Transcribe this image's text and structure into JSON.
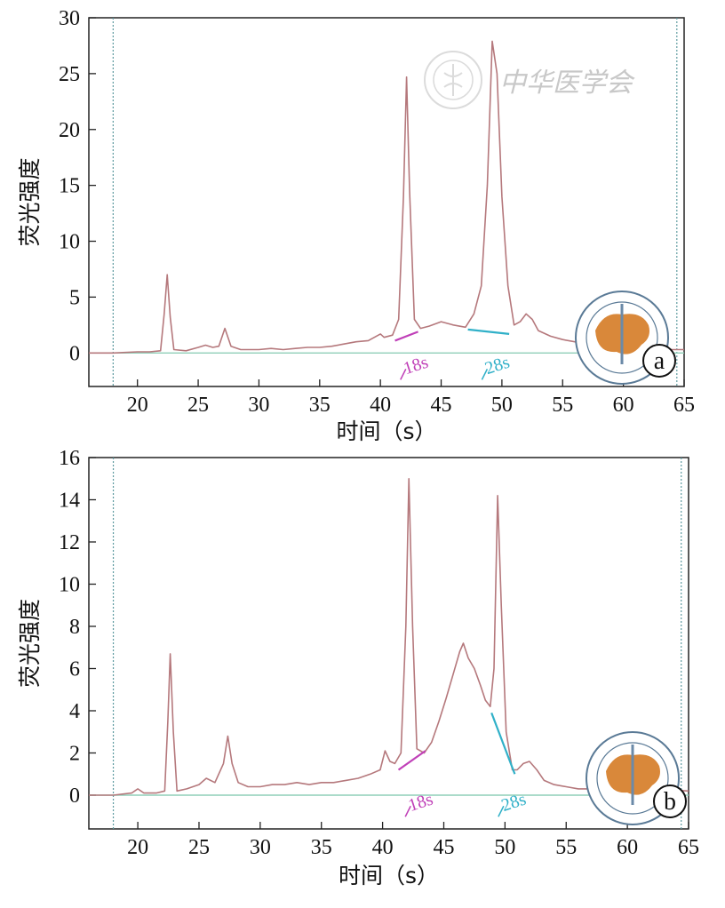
{
  "watermark": {
    "text": "中华医学会"
  },
  "colors": {
    "trace": "#b5787c",
    "baseline": "#8fcfb8",
    "frame": "#222222",
    "guide": "#5e9aa0",
    "magenta": "#c040b8",
    "cyan": "#30b0c8",
    "logo_fill": "#d9883a",
    "logo_ring": "#5a7a96"
  },
  "chart_data": [
    {
      "type": "line",
      "panel_label": "a",
      "xlabel": "时间（s）",
      "ylabel": "荧光强度",
      "xlim": [
        16,
        65
      ],
      "ylim": [
        -3,
        30
      ],
      "xticks": [
        20,
        25,
        30,
        35,
        40,
        45,
        50,
        55,
        60,
        65
      ],
      "yticks": [
        0,
        5,
        10,
        15,
        20,
        25,
        30
      ],
      "guides": [
        18,
        64.4
      ],
      "series": [
        {
          "values": [
            [
              16,
              0.0
            ],
            [
              18,
              0.0
            ],
            [
              20,
              0.1
            ],
            [
              21,
              0.1
            ],
            [
              21.9,
              0.2
            ],
            [
              22.2,
              3.5
            ],
            [
              22.45,
              7.0
            ],
            [
              22.7,
              3.2
            ],
            [
              23,
              0.3
            ],
            [
              24,
              0.2
            ],
            [
              25,
              0.5
            ],
            [
              25.6,
              0.7
            ],
            [
              26.2,
              0.5
            ],
            [
              26.7,
              0.6
            ],
            [
              27.2,
              2.2
            ],
            [
              27.7,
              0.6
            ],
            [
              28.5,
              0.3
            ],
            [
              30,
              0.3
            ],
            [
              31,
              0.4
            ],
            [
              32,
              0.3
            ],
            [
              33,
              0.4
            ],
            [
              34,
              0.5
            ],
            [
              35,
              0.5
            ],
            [
              36,
              0.6
            ],
            [
              37,
              0.8
            ],
            [
              38,
              1.0
            ],
            [
              39,
              1.1
            ],
            [
              40,
              1.7
            ],
            [
              40.3,
              1.4
            ],
            [
              41,
              1.6
            ],
            [
              41.5,
              3.0
            ],
            [
              41.9,
              14.0
            ],
            [
              42.15,
              24.7
            ],
            [
              42.4,
              14.5
            ],
            [
              42.8,
              3.0
            ],
            [
              43.3,
              2.2
            ],
            [
              44,
              2.4
            ],
            [
              45,
              2.8
            ],
            [
              46,
              2.5
            ],
            [
              47,
              2.3
            ],
            [
              47.7,
              3.5
            ],
            [
              48.3,
              6.0
            ],
            [
              48.8,
              15.0
            ],
            [
              49.2,
              27.9
            ],
            [
              49.6,
              25.0
            ],
            [
              50,
              14.0
            ],
            [
              50.5,
              6.0
            ],
            [
              51,
              2.5
            ],
            [
              51.5,
              2.8
            ],
            [
              52,
              3.5
            ],
            [
              52.5,
              3.0
            ],
            [
              53,
              2.0
            ],
            [
              54,
              1.5
            ],
            [
              55,
              1.2
            ],
            [
              56,
              1.0
            ],
            [
              57,
              0.8
            ],
            [
              58,
              0.6
            ],
            [
              59,
              0.5
            ],
            [
              60,
              0.4
            ],
            [
              62,
              0.3
            ],
            [
              65,
              0.3
            ]
          ]
        }
      ],
      "segments": [
        {
          "color": "magenta",
          "from": [
            41.2,
            1.1
          ],
          "to": [
            43.1,
            1.9
          ],
          "label": "18s",
          "label_pos": [
            41.8,
            -1.6
          ]
        },
        {
          "color": "cyan",
          "from": [
            47.2,
            2.1
          ],
          "to": [
            50.6,
            1.7
          ],
          "label": "28s",
          "label_pos": [
            48.5,
            -1.6
          ]
        }
      ]
    },
    {
      "type": "line",
      "panel_label": "b",
      "xlabel": "时间（s）",
      "ylabel": "荧光强度",
      "xlim": [
        16,
        65
      ],
      "ylim": [
        -1.6,
        16
      ],
      "xticks": [
        20,
        25,
        30,
        35,
        40,
        45,
        50,
        55,
        60,
        65
      ],
      "yticks": [
        0,
        2,
        4,
        6,
        8,
        10,
        12,
        14,
        16
      ],
      "guides": [
        18,
        64.4
      ],
      "series": [
        {
          "values": [
            [
              16,
              0.0
            ],
            [
              18,
              0.0
            ],
            [
              19.5,
              0.1
            ],
            [
              20,
              0.3
            ],
            [
              20.5,
              0.1
            ],
            [
              21.5,
              0.1
            ],
            [
              22.2,
              0.2
            ],
            [
              22.45,
              3.5
            ],
            [
              22.65,
              6.7
            ],
            [
              22.9,
              3.0
            ],
            [
              23.2,
              0.2
            ],
            [
              24,
              0.3
            ],
            [
              25,
              0.5
            ],
            [
              25.6,
              0.8
            ],
            [
              26.3,
              0.6
            ],
            [
              27,
              1.5
            ],
            [
              27.35,
              2.8
            ],
            [
              27.7,
              1.5
            ],
            [
              28.2,
              0.6
            ],
            [
              29,
              0.4
            ],
            [
              30,
              0.4
            ],
            [
              31,
              0.5
            ],
            [
              32,
              0.5
            ],
            [
              33,
              0.6
            ],
            [
              34,
              0.5
            ],
            [
              35,
              0.6
            ],
            [
              36,
              0.6
            ],
            [
              37,
              0.7
            ],
            [
              38,
              0.8
            ],
            [
              39,
              1.0
            ],
            [
              39.8,
              1.2
            ],
            [
              40.2,
              2.1
            ],
            [
              40.6,
              1.6
            ],
            [
              41,
              1.5
            ],
            [
              41.5,
              2.0
            ],
            [
              41.9,
              8.0
            ],
            [
              42.15,
              15.0
            ],
            [
              42.45,
              8.0
            ],
            [
              42.8,
              2.2
            ],
            [
              43.4,
              2.0
            ],
            [
              44,
              2.5
            ],
            [
              44.6,
              3.5
            ],
            [
              45.2,
              4.6
            ],
            [
              45.8,
              5.8
            ],
            [
              46.3,
              6.8
            ],
            [
              46.6,
              7.2
            ],
            [
              47,
              6.5
            ],
            [
              47.5,
              6.0
            ],
            [
              48,
              5.2
            ],
            [
              48.4,
              4.5
            ],
            [
              48.8,
              4.2
            ],
            [
              49.1,
              6.0
            ],
            [
              49.4,
              14.2
            ],
            [
              49.7,
              9.0
            ],
            [
              50.1,
              3.0
            ],
            [
              50.6,
              1.2
            ],
            [
              51,
              1.2
            ],
            [
              51.5,
              1.5
            ],
            [
              52,
              1.6
            ],
            [
              52.6,
              1.2
            ],
            [
              53.2,
              0.7
            ],
            [
              54,
              0.5
            ],
            [
              55,
              0.4
            ],
            [
              56,
              0.3
            ],
            [
              58,
              0.3
            ],
            [
              60,
              0.3
            ],
            [
              62,
              0.3
            ],
            [
              65,
              0.2
            ]
          ]
        }
      ],
      "segments": [
        {
          "color": "magenta",
          "from": [
            41.3,
            1.2
          ],
          "to": [
            43.5,
            2.1
          ],
          "label": "18s",
          "label_pos": [
            42.0,
            -0.6
          ]
        },
        {
          "color": "cyan",
          "from": [
            48.9,
            3.9
          ],
          "to": [
            50.8,
            1.0
          ],
          "label": "28s",
          "label_pos": [
            49.6,
            -0.6
          ]
        }
      ]
    }
  ]
}
